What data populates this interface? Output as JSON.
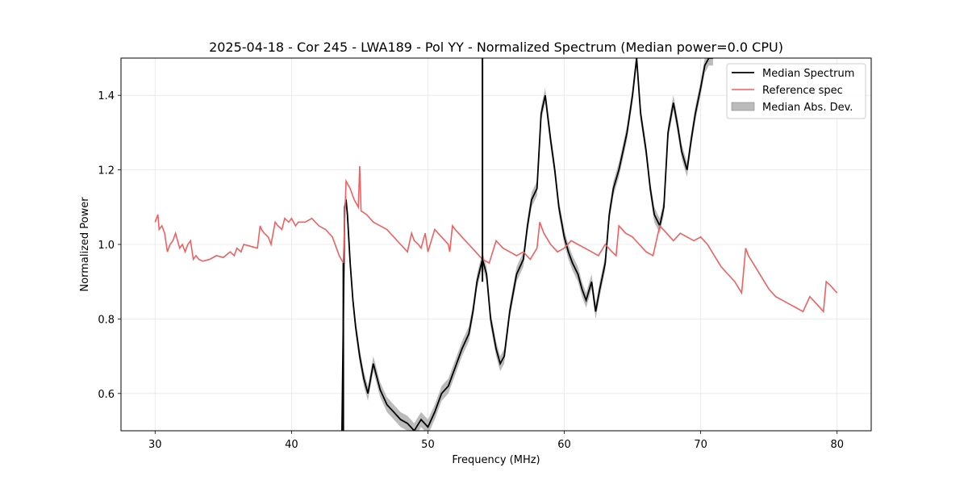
{
  "chart_data": {
    "type": "line",
    "title": "2025-04-18 - Cor 245 - LWA189 - Pol YY - Normalized Spectrum (Median power=0.0 CPU)",
    "xlabel": "Frequency (MHz)",
    "ylabel": "Normalized Power",
    "xlim": [
      27.5,
      82.5
    ],
    "ylim": [
      0.5,
      1.5
    ],
    "xticks": [
      30,
      40,
      50,
      60,
      70,
      80
    ],
    "yticks": [
      0.6,
      0.8,
      1.0,
      1.2,
      1.4
    ],
    "xtick_labels": [
      "30",
      "40",
      "50",
      "60",
      "70",
      "80"
    ],
    "ytick_labels": [
      "0.6",
      "0.8",
      "1.0",
      "1.2",
      "1.4"
    ],
    "grid": true,
    "legend_position": "top-right",
    "colors": {
      "median": "#000000",
      "reference": "#f06060",
      "mad": "#bbbbbb"
    },
    "legend": [
      {
        "label": "Median Spectrum",
        "kind": "line",
        "color": "#000000"
      },
      {
        "label": "Reference spec",
        "kind": "line",
        "color": "#f06060"
      },
      {
        "label": "Median Abs. Dev.",
        "kind": "patch",
        "color": "#bbbbbb"
      }
    ],
    "series": [
      {
        "name": "Reference spec",
        "x": [
          30.0,
          30.2,
          30.3,
          30.5,
          30.7,
          30.9,
          31.1,
          31.3,
          31.5,
          31.8,
          32.0,
          32.2,
          32.4,
          32.6,
          32.8,
          33.0,
          33.2,
          33.5,
          34.0,
          34.5,
          35.0,
          35.5,
          35.8,
          36.0,
          36.3,
          36.5,
          37.0,
          37.5,
          37.7,
          37.8,
          38.0,
          38.3,
          38.5,
          38.8,
          39.0,
          39.3,
          39.5,
          39.8,
          40.0,
          40.3,
          40.5,
          41.0,
          41.5,
          42.0,
          42.5,
          43.0,
          43.5,
          43.8,
          44.0,
          44.3,
          44.6,
          44.9,
          45.0,
          45.1,
          45.5,
          46.0,
          46.5,
          47.0,
          47.5,
          48.0,
          48.5,
          48.8,
          49.0,
          49.3,
          49.5,
          49.8,
          50.0,
          50.5,
          51.0,
          51.5,
          51.6,
          51.8,
          52.0,
          52.5,
          53.0,
          53.5,
          54.0,
          54.5,
          55.0,
          55.5,
          56.0,
          56.5,
          57.0,
          57.5,
          58.0,
          58.2,
          58.5,
          59.0,
          59.5,
          60.0,
          60.5,
          61.0,
          61.5,
          62.0,
          62.5,
          63.0,
          63.5,
          63.8,
          64.0,
          64.5,
          65.0,
          65.5,
          66.0,
          66.5,
          67.0,
          67.5,
          68.0,
          68.5,
          69.0,
          69.5,
          70.0,
          70.5,
          71.0,
          71.5,
          72.0,
          72.5,
          73.0,
          73.3,
          73.5,
          74.0,
          74.5,
          75.0,
          75.5,
          76.0,
          76.5,
          77.0,
          77.5,
          78.0,
          78.5,
          79.0,
          79.2,
          79.5,
          80.0
        ],
        "values": [
          1.06,
          1.08,
          1.04,
          1.05,
          1.03,
          0.98,
          1.0,
          1.01,
          1.03,
          0.99,
          1.0,
          0.98,
          1.0,
          1.01,
          0.96,
          0.97,
          0.96,
          0.955,
          0.96,
          0.97,
          0.965,
          0.98,
          0.97,
          0.99,
          0.98,
          1.0,
          0.995,
          0.99,
          1.05,
          1.04,
          1.03,
          1.02,
          1.0,
          1.06,
          1.05,
          1.04,
          1.07,
          1.06,
          1.07,
          1.05,
          1.06,
          1.06,
          1.07,
          1.05,
          1.04,
          1.02,
          0.97,
          0.95,
          1.17,
          1.15,
          1.12,
          1.1,
          1.21,
          1.09,
          1.08,
          1.06,
          1.05,
          1.04,
          1.02,
          1.0,
          0.98,
          1.03,
          1.01,
          1.0,
          0.99,
          1.03,
          0.98,
          1.04,
          1.02,
          1.0,
          0.98,
          1.05,
          1.04,
          1.02,
          1.0,
          0.98,
          0.96,
          0.95,
          1.01,
          0.99,
          0.98,
          0.97,
          0.98,
          0.96,
          0.99,
          1.06,
          1.03,
          1.0,
          0.98,
          0.99,
          1.01,
          1.0,
          0.99,
          0.98,
          0.97,
          1.0,
          0.98,
          0.97,
          1.05,
          1.03,
          1.02,
          1.0,
          0.98,
          0.97,
          1.05,
          1.03,
          1.01,
          1.03,
          1.02,
          1.01,
          1.02,
          1.0,
          0.97,
          0.94,
          0.92,
          0.9,
          0.87,
          0.99,
          0.97,
          0.94,
          0.91,
          0.88,
          0.86,
          0.85,
          0.84,
          0.83,
          0.82,
          0.86,
          0.84,
          0.82,
          0.9,
          0.89,
          0.87
        ]
      },
      {
        "name": "Median Spectrum",
        "x": [
          43.7,
          43.9,
          44.0,
          44.1,
          44.3,
          44.5,
          44.7,
          45.0,
          45.3,
          45.6,
          46.0,
          46.5,
          47.0,
          47.5,
          48.0,
          48.5,
          49.0,
          49.5,
          50.0,
          50.5,
          51.0,
          51.5,
          52.0,
          52.5,
          53.0,
          53.3,
          53.6,
          54.0,
          54.3,
          54.6,
          55.0,
          55.3,
          55.6,
          56.0,
          56.5,
          57.0,
          57.3,
          57.6,
          58.0,
          58.3,
          58.6,
          59.0,
          59.3,
          59.6,
          60.0,
          60.3,
          60.6,
          61.0,
          61.3,
          61.6,
          62.0,
          62.3,
          62.6,
          63.0,
          63.3,
          63.6,
          64.0,
          64.3,
          64.6,
          65.0,
          65.3,
          65.6,
          66.0,
          66.3,
          66.6,
          67.0,
          67.3,
          67.6,
          68.0,
          68.3,
          68.6,
          69.0,
          69.3,
          69.6,
          70.0,
          70.3,
          70.6,
          70.9
        ],
        "values": [
          0.5,
          1.1,
          1.12,
          1.08,
          0.95,
          0.85,
          0.78,
          0.7,
          0.64,
          0.6,
          0.68,
          0.61,
          0.57,
          0.55,
          0.53,
          0.52,
          0.5,
          0.53,
          0.51,
          0.55,
          0.6,
          0.62,
          0.67,
          0.72,
          0.76,
          0.82,
          0.9,
          0.96,
          0.92,
          0.8,
          0.72,
          0.68,
          0.7,
          0.82,
          0.92,
          0.96,
          1.05,
          1.12,
          1.15,
          1.35,
          1.4,
          1.28,
          1.2,
          1.1,
          1.02,
          0.98,
          0.95,
          0.92,
          0.88,
          0.85,
          0.9,
          0.82,
          0.88,
          0.95,
          1.08,
          1.15,
          1.2,
          1.25,
          1.3,
          1.4,
          1.5,
          1.35,
          1.25,
          1.15,
          1.08,
          1.05,
          1.1,
          1.3,
          1.38,
          1.32,
          1.25,
          1.2,
          1.28,
          1.35,
          1.42,
          1.48,
          1.5,
          1.5
        ]
      }
    ],
    "mad_halfwidth": 0.02,
    "spikes": [
      {
        "x": 43.8,
        "bottom": 0.5,
        "top": 0.95
      },
      {
        "x": 54.0,
        "bottom": 0.9,
        "top": 1.5
      }
    ]
  }
}
